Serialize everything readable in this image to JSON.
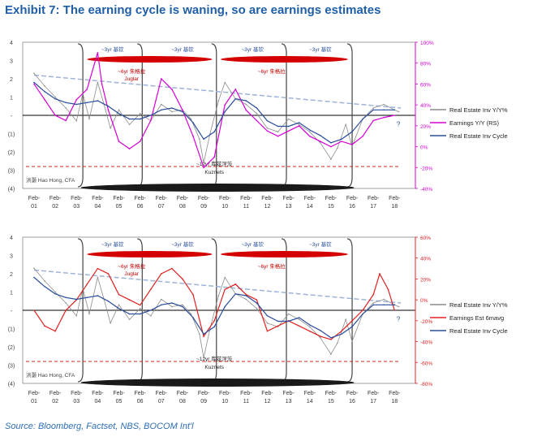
{
  "header": {
    "title": "Exhibit 7: The earning cycle is waning, so are earnings estimates"
  },
  "footer": {
    "source": "Source: Bloomberg, Factset, NBS, BOCOM Int'l"
  },
  "colors": {
    "title": "#1f5fa8",
    "source": "#2e6db5",
    "inventory_yy": "#8c8c8c",
    "earnings_yy": "#d400d4",
    "earnings_est": "#e02020",
    "inventory_cycle": "#2a4d9c",
    "trend_dash": "#9db4d8",
    "kuznets_dash": "#d42020",
    "cycle_ellipse": "#d40000",
    "axis_right_top": "#d400d4",
    "axis_right_bottom": "#e02020"
  },
  "chart_data": [
    {
      "type": "line",
      "x_labels": [
        "Feb-01",
        "Feb-02",
        "Feb-03",
        "Feb-04",
        "Feb-05",
        "Feb-06",
        "Feb-07",
        "Feb-08",
        "Feb-09",
        "Feb-10",
        "Feb-11",
        "Feb-12",
        "Feb-13",
        "Feb-14",
        "Feb-15",
        "Feb-16",
        "Feb-17",
        "Feb-18"
      ],
      "ylim_left": [
        -4,
        4
      ],
      "y_left_ticks": [
        "4",
        "3",
        "2",
        "1",
        "-",
        "(1)",
        "(2)",
        "(3)",
        "(4)"
      ],
      "ylim_right": [
        -40,
        100
      ],
      "y_right_ticks": [
        "100%",
        "80%",
        "60%",
        "40%",
        "20%",
        "0%",
        "-20%",
        "-40%"
      ],
      "legend": [
        "Real Estate Inv Y/Y%",
        "Earnings Y/Y (RS)",
        "Real Estate Inv Cycle"
      ],
      "annotations": {
        "juglar_a": "~3yr 基钦",
        "juglar_b": "~3yr 基钦",
        "juglar_c": "~3yr 基钦",
        "juglar_d": "~3yr 基钦",
        "mid_a": "~6yr 朱格拉",
        "mid_a_sub": "Juglar",
        "mid_b": "~6yr 朱格拉",
        "kuznets": "~12yr 库兹涅茨",
        "kuznets_sub": "Kuznets",
        "watermark": "洪灏 Hao Hong, CFA",
        "question": "?"
      },
      "series": [
        {
          "name": "Real Estate Inv Y/Y%",
          "axis": "left",
          "x": [
            2001,
            2001.5,
            2002,
            2002.5,
            2003,
            2003.3,
            2003.6,
            2004,
            2004.3,
            2004.6,
            2005,
            2005.5,
            2006,
            2006.5,
            2007,
            2007.5,
            2008,
            2008.4,
            2008.8,
            2009,
            2009.3,
            2009.7,
            2010,
            2010.5,
            2011,
            2011.5,
            2012,
            2012.5,
            2013,
            2013.5,
            2014,
            2014.5,
            2015,
            2015.3,
            2015.7,
            2016,
            2016.5,
            2017,
            2017.5,
            2018,
            2018.2
          ],
          "values": [
            2.3,
            1.6,
            1.0,
            0.4,
            -0.3,
            1.2,
            -0.2,
            1.8,
            0.6,
            -0.7,
            0.3,
            -0.5,
            0.1,
            -0.3,
            0.6,
            0.2,
            0.3,
            -0.2,
            -1.3,
            -2.6,
            -1.0,
            0.8,
            1.8,
            0.9,
            0.6,
            0.1,
            -0.7,
            -0.9,
            -0.2,
            -0.5,
            -0.9,
            -1.5,
            -2.4,
            -1.8,
            -0.5,
            -1.7,
            -0.2,
            0.4,
            0.6,
            0.3,
            0.2
          ]
        },
        {
          "name": "Earnings Y/Y (RS)",
          "axis": "right",
          "x": [
            2001,
            2001.5,
            2002,
            2002.5,
            2003,
            2003.5,
            2004,
            2004.2,
            2004.5,
            2005,
            2005.5,
            2006,
            2006.5,
            2007,
            2007.5,
            2008,
            2008.5,
            2009,
            2009.5,
            2010,
            2010.5,
            2011,
            2011.5,
            2012,
            2012.5,
            2013,
            2013.5,
            2014,
            2014.5,
            2015,
            2015.5,
            2016,
            2016.5,
            2017,
            2017.5,
            2018
          ],
          "values": [
            60,
            45,
            30,
            25,
            45,
            55,
            90,
            60,
            35,
            5,
            -2,
            5,
            25,
            65,
            55,
            35,
            10,
            -20,
            -10,
            40,
            55,
            35,
            25,
            15,
            10,
            15,
            20,
            10,
            5,
            0,
            5,
            2,
            10,
            25,
            28,
            30
          ]
        },
        {
          "name": "Real Estate Inv Cycle",
          "axis": "left",
          "x": [
            2001,
            2001.5,
            2002,
            2002.5,
            2003,
            2003.5,
            2004,
            2004.5,
            2005,
            2005.5,
            2006,
            2006.5,
            2007,
            2007.5,
            2008,
            2008.5,
            2009,
            2009.5,
            2010,
            2010.5,
            2011,
            2011.5,
            2012,
            2012.5,
            2013,
            2013.5,
            2014,
            2014.5,
            2015,
            2015.5,
            2016,
            2016.5,
            2017,
            2017.5,
            2018
          ],
          "values": [
            1.8,
            1.3,
            0.9,
            0.7,
            0.6,
            0.7,
            0.8,
            0.5,
            0.1,
            -0.2,
            -0.2,
            0.0,
            0.3,
            0.4,
            0.2,
            -0.4,
            -1.3,
            -0.9,
            0.2,
            0.9,
            0.8,
            0.4,
            -0.3,
            -0.6,
            -0.6,
            -0.4,
            -0.8,
            -1.1,
            -1.5,
            -1.3,
            -0.9,
            -0.2,
            0.3,
            0.3,
            0.3
          ]
        }
      ]
    },
    {
      "type": "line",
      "x_labels": [
        "Feb-01",
        "Feb-02",
        "Feb-03",
        "Feb-04",
        "Feb-05",
        "Feb-06",
        "Feb-07",
        "Feb-08",
        "Feb-09",
        "Feb-10",
        "Feb-11",
        "Feb-12",
        "Feb-13",
        "Feb-14",
        "Feb-15",
        "Feb-16",
        "Feb-17",
        "Feb-18"
      ],
      "ylim_left": [
        -4,
        4
      ],
      "y_left_ticks": [
        "4",
        "3",
        "2",
        "1",
        "-",
        "(1)",
        "(2)",
        "(3)",
        "(4)"
      ],
      "ylim_right": [
        -80,
        60
      ],
      "y_right_ticks": [
        "60%",
        "40%",
        "20%",
        "0%",
        "-20%",
        "-40%",
        "-60%",
        "-80%"
      ],
      "legend": [
        "Real Estate Inv Y/Y%",
        "Earnings Est 6mavg",
        "Real Estate Inv Cycle"
      ],
      "annotations": {
        "juglar_a": "~3yr 基钦",
        "juglar_b": "~3yr 基钦",
        "juglar_c": "~3yr 基钦",
        "juglar_d": "~3yr 基钦",
        "mid_a": "~6yr 朱格拉",
        "mid_a_sub": "Juglar",
        "mid_b": "~6yr 朱格拉",
        "kuznets": "~12yr 库兹涅茨",
        "kuznets_sub": "Kuznets",
        "watermark": "洪灏 Hao Hong, CFA",
        "question": "?"
      },
      "series": [
        {
          "name": "Real Estate Inv Y/Y%",
          "axis": "left",
          "x": [
            2001,
            2001.5,
            2002,
            2002.5,
            2003,
            2003.3,
            2003.6,
            2004,
            2004.3,
            2004.6,
            2005,
            2005.5,
            2006,
            2006.5,
            2007,
            2007.5,
            2008,
            2008.4,
            2008.8,
            2009,
            2009.3,
            2009.7,
            2010,
            2010.5,
            2011,
            2011.5,
            2012,
            2012.5,
            2013,
            2013.5,
            2014,
            2014.5,
            2015,
            2015.3,
            2015.7,
            2016,
            2016.5,
            2017,
            2017.5,
            2018,
            2018.2
          ],
          "values": [
            2.3,
            1.6,
            1.0,
            0.4,
            -0.3,
            1.2,
            -0.2,
            1.8,
            0.6,
            -0.7,
            0.3,
            -0.5,
            0.1,
            -0.3,
            0.6,
            0.2,
            0.3,
            -0.2,
            -1.3,
            -2.6,
            -1.0,
            0.8,
            1.8,
            0.9,
            0.6,
            0.1,
            -0.7,
            -0.9,
            -0.2,
            -0.5,
            -0.9,
            -1.5,
            -2.4,
            -1.8,
            -0.5,
            -1.7,
            -0.2,
            0.4,
            0.6,
            0.3,
            0.2
          ]
        },
        {
          "name": "Earnings Est 6mavg",
          "axis": "right",
          "x": [
            2001,
            2001.5,
            2002,
            2002.5,
            2003,
            2003.5,
            2004,
            2004.5,
            2005,
            2005.5,
            2006,
            2006.5,
            2007,
            2007.5,
            2008,
            2008.5,
            2009,
            2009.5,
            2010,
            2010.5,
            2011,
            2011.5,
            2012,
            2012.5,
            2013,
            2013.5,
            2014,
            2014.5,
            2015,
            2015.5,
            2016,
            2016.5,
            2017,
            2017.3,
            2017.7,
            2018
          ],
          "values": [
            -10,
            -25,
            -30,
            -10,
            0,
            15,
            30,
            25,
            5,
            0,
            -5,
            10,
            25,
            30,
            20,
            5,
            -35,
            -20,
            10,
            15,
            5,
            0,
            -30,
            -25,
            -20,
            -25,
            -30,
            -35,
            -38,
            -30,
            -20,
            -10,
            5,
            25,
            10,
            -10
          ]
        },
        {
          "name": "Real Estate Inv Cycle",
          "axis": "left",
          "x": [
            2001,
            2001.5,
            2002,
            2002.5,
            2003,
            2003.5,
            2004,
            2004.5,
            2005,
            2005.5,
            2006,
            2006.5,
            2007,
            2007.5,
            2008,
            2008.5,
            2009,
            2009.5,
            2010,
            2010.5,
            2011,
            2011.5,
            2012,
            2012.5,
            2013,
            2013.5,
            2014,
            2014.5,
            2015,
            2015.5,
            2016,
            2016.5,
            2017,
            2017.5,
            2018
          ],
          "values": [
            1.8,
            1.3,
            0.9,
            0.7,
            0.6,
            0.7,
            0.8,
            0.5,
            0.1,
            -0.2,
            -0.2,
            0.0,
            0.3,
            0.4,
            0.2,
            -0.4,
            -1.3,
            -0.9,
            0.2,
            0.9,
            0.8,
            0.4,
            -0.3,
            -0.6,
            -0.6,
            -0.4,
            -0.8,
            -1.1,
            -1.5,
            -1.3,
            -0.9,
            -0.2,
            0.3,
            0.3,
            0.3
          ]
        }
      ]
    }
  ]
}
